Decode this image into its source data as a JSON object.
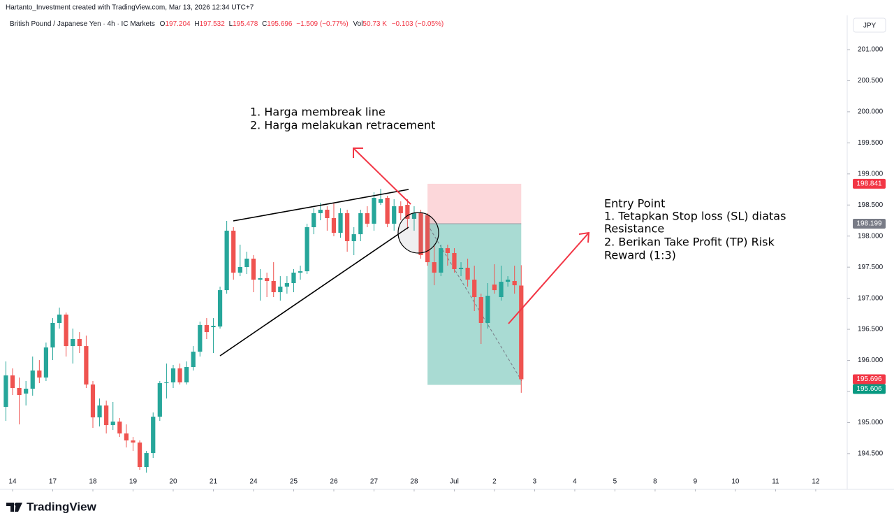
{
  "header": {
    "text": "Hartanto_Investment created with TradingView.com, Mar 13, 2026 12:34 UTC+7"
  },
  "footer": {
    "brand": "TradingView"
  },
  "chart_data": {
    "type": "candlestick",
    "symbol": "British Pound / Japanese Yen · 4h · IC Markets",
    "ohlc_labels": [
      "O",
      "H",
      "L",
      "C"
    ],
    "change": "−1.509 (−0.77%)",
    "volume_label": "Vol",
    "volume": "50.73 K",
    "volume_change": "−0.103 (−0.05%)",
    "currency": "JPY",
    "up_color": "#26a69a",
    "down_color": "#ef5350",
    "open": [
      195.252,
      195.758,
      195.556,
      195.466,
      195.544,
      195.837,
      195.724,
      196.208,
      196.602,
      196.737,
      196.23,
      196.343,
      196.23,
      195.612,
      195.083,
      195.274,
      194.959,
      195.015,
      194.824,
      194.712,
      194.678,
      194.284,
      194.509,
      195.094,
      195.634,
      195.646,
      195.871,
      195.646,
      195.893,
      196.14,
      196.568,
      196.534,
      196.545,
      197.13,
      198.087,
      197.412,
      197.502,
      197.637,
      197.299,
      197.322,
      197.277,
      197.097,
      197.187,
      197.243,
      197.412,
      197.434,
      198.143,
      198.368,
      198.424,
      198.289,
      198.053,
      198.368,
      197.918,
      198.03,
      198.368,
      198.199,
      198.536,
      198.615,
      198.199,
      198.48,
      198.503,
      198.278,
      198.368,
      198.334,
      197.58,
      197.412,
      197.805,
      197.727,
      197.468,
      197.49,
      197.299,
      197.018,
      196.602,
      197.22,
      197.018,
      197.265,
      197.277,
      197.204
    ],
    "high": [
      195.983,
      195.871,
      195.724,
      195.668,
      196.062,
      196.005,
      196.287,
      196.68,
      196.849,
      196.77,
      196.512,
      196.455,
      196.399,
      195.668,
      195.387,
      195.353,
      195.331,
      195.072,
      194.97,
      194.768,
      194.712,
      194.543,
      195.162,
      195.668,
      195.949,
      195.927,
      195.949,
      195.983,
      196.23,
      196.624,
      196.68,
      196.68,
      197.187,
      198.244,
      198.143,
      197.862,
      197.749,
      197.693,
      197.468,
      197.412,
      197.58,
      197.355,
      197.355,
      197.468,
      197.524,
      198.199,
      198.446,
      198.536,
      198.48,
      198.536,
      198.446,
      198.424,
      198.143,
      198.424,
      198.48,
      198.705,
      198.761,
      198.649,
      198.593,
      198.559,
      198.593,
      198.48,
      198.424,
      198.368,
      197.862,
      197.862,
      197.862,
      197.805,
      197.58,
      197.637,
      197.524,
      197.074,
      197.243,
      197.547,
      197.524,
      197.355,
      197.524,
      197.532
    ],
    "low": [
      195.027,
      195.443,
      194.97,
      195.274,
      195.432,
      195.634,
      195.668,
      196.005,
      196.512,
      196.062,
      195.949,
      196.118,
      195.556,
      194.914,
      194.937,
      194.824,
      194.88,
      194.768,
      194.599,
      194.543,
      194.239,
      194.194,
      194.43,
      195.027,
      195.387,
      195.556,
      195.612,
      195.612,
      195.837,
      196.062,
      196.343,
      196.118,
      196.512,
      197.074,
      197.299,
      197.355,
      197.389,
      197.097,
      196.962,
      197.018,
      197.018,
      196.962,
      197.074,
      197.097,
      197.299,
      197.389,
      198.03,
      198.255,
      198.087,
      197.997,
      197.974,
      197.749,
      197.693,
      197.918,
      198.143,
      198.087,
      198.503,
      198.143,
      198.087,
      198.255,
      198.109,
      198.087,
      197.637,
      197.524,
      197.209,
      197.355,
      197.524,
      197.412,
      197.355,
      197.187,
      196.793,
      196.264,
      196.512,
      197.074,
      196.962,
      197.187,
      197.074,
      195.478
    ],
    "close": [
      195.758,
      195.556,
      195.443,
      195.544,
      195.837,
      195.724,
      196.208,
      196.602,
      196.737,
      196.23,
      196.343,
      196.23,
      195.612,
      195.083,
      195.274,
      194.959,
      195.015,
      194.824,
      194.712,
      194.678,
      194.284,
      194.509,
      195.094,
      195.634,
      195.646,
      195.871,
      195.646,
      195.893,
      196.14,
      196.568,
      196.455,
      196.557,
      197.13,
      198.087,
      197.412,
      197.502,
      197.637,
      197.299,
      197.322,
      197.277,
      197.097,
      197.187,
      197.243,
      197.412,
      197.434,
      198.143,
      198.368,
      198.424,
      198.289,
      198.053,
      198.368,
      197.918,
      198.03,
      198.368,
      198.199,
      198.615,
      198.593,
      198.199,
      198.48,
      198.368,
      198.278,
      198.368,
      197.693,
      197.58,
      197.412,
      197.805,
      197.727,
      197.468,
      197.49,
      197.299,
      197.018,
      196.602,
      197.04,
      197.13,
      197.265,
      197.299,
      197.209,
      195.696
    ],
    "xlim": [
      -0.878,
      125.6
    ],
    "xticks": [
      {
        "value": 1,
        "label": "14"
      },
      {
        "value": 7,
        "label": "17"
      },
      {
        "value": 13,
        "label": "18"
      },
      {
        "value": 19,
        "label": "19"
      },
      {
        "value": 25,
        "label": "20"
      },
      {
        "value": 31,
        "label": "21"
      },
      {
        "value": 37,
        "label": "24"
      },
      {
        "value": 43,
        "label": "25"
      },
      {
        "value": 49,
        "label": "26"
      },
      {
        "value": 55,
        "label": "27"
      },
      {
        "value": 61,
        "label": "28"
      },
      {
        "value": 67,
        "label": "Jul"
      },
      {
        "value": 73,
        "label": "2"
      },
      {
        "value": 79,
        "label": "3"
      },
      {
        "value": 85,
        "label": "4"
      },
      {
        "value": 91,
        "label": "5"
      },
      {
        "value": 97,
        "label": "8"
      },
      {
        "value": 103,
        "label": "9"
      },
      {
        "value": 109,
        "label": "10"
      },
      {
        "value": 115,
        "label": "11"
      },
      {
        "value": 121,
        "label": "12"
      }
    ],
    "ylim": [
      193.925,
      201.551
    ],
    "yticks": [
      {
        "value": 194.5,
        "label": "194.500"
      },
      {
        "value": 195,
        "label": "195.000"
      },
      {
        "value": 195.5,
        "label": "195.500"
      },
      {
        "value": 196,
        "label": "196.000"
      },
      {
        "value": 196.5,
        "label": "196.500"
      },
      {
        "value": 197,
        "label": "197.000"
      },
      {
        "value": 197.5,
        "label": "197.500"
      },
      {
        "value": 198,
        "label": "198.000"
      },
      {
        "value": 198.5,
        "label": "198.500"
      },
      {
        "value": 199,
        "label": "199.000"
      },
      {
        "value": 199.5,
        "label": "199.500"
      },
      {
        "value": 200,
        "label": "200.000"
      },
      {
        "value": 200.5,
        "label": "200.500"
      },
      {
        "value": 201,
        "label": "201.000"
      }
    ],
    "position": {
      "x_start": 63,
      "x_end": 77,
      "stop": {
        "value": 198.841,
        "label": "198.841"
      },
      "entry": {
        "value": 198.199,
        "label": "198.199"
      },
      "target": {
        "value": 195.606,
        "label": "195.606"
      }
    },
    "last_price": {
      "value": 195.696,
      "label": "195.696"
    },
    "annotations": {
      "break": [
        "1. Harga membreak line",
        "2. Harga melakukan retracement"
      ],
      "entry": [
        "Entry Point",
        "1. Tetapkan Stop loss (SL) diatas",
        "Resistance",
        "2. Berikan Take Profit (TP) Risk",
        "Reward (1:3)"
      ]
    }
  }
}
